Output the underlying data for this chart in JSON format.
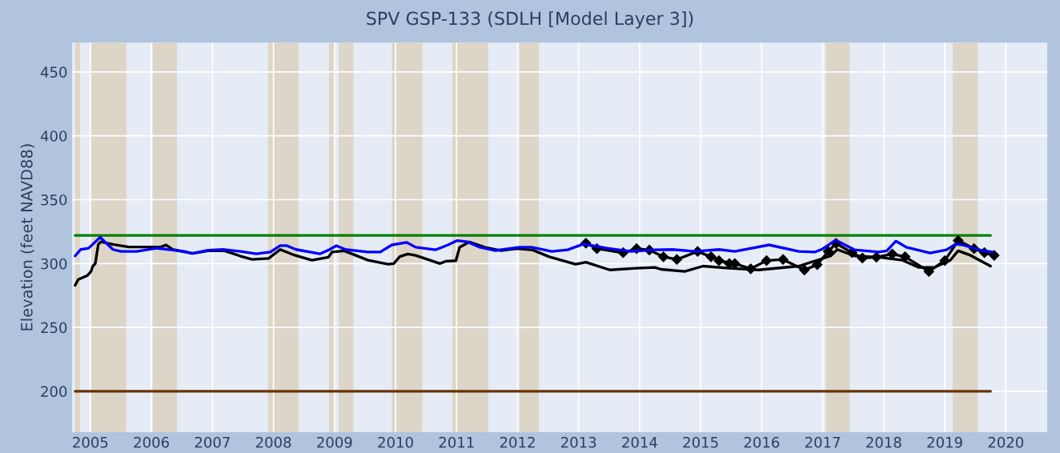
{
  "chart_data": {
    "type": "line",
    "title": "SPV GSP-133 (SDLH [Model Layer 3])",
    "ylabel": "Elevation (feet NAVD88)",
    "xlim": [
      2004.7,
      2020.68
    ],
    "xticks": [
      2005,
      2006,
      2007,
      2008,
      2009,
      2010,
      2011,
      2012,
      2013,
      2014,
      2015,
      2016,
      2017,
      2018,
      2019,
      2020
    ],
    "ylim": [
      168,
      473
    ],
    "yticks": [
      200,
      250,
      300,
      350,
      400,
      450
    ],
    "grid": true,
    "legend": false,
    "marker": "none",
    "line_style": "solid",
    "bands": [
      {
        "axis": "x",
        "from": 2004.75,
        "to": 2004.83,
        "color": "#ddd5c8"
      },
      {
        "axis": "x",
        "from": 2005.01,
        "to": 2005.59,
        "color": "#ddd5c8"
      },
      {
        "axis": "x",
        "from": 2006.02,
        "to": 2006.42,
        "color": "#ddd5c8"
      },
      {
        "axis": "x",
        "from": 2007.91,
        "to": 2008.41,
        "color": "#ddd5c8"
      },
      {
        "axis": "x",
        "from": 2008.91,
        "to": 2008.99,
        "color": "#ddd5c8"
      },
      {
        "axis": "x",
        "from": 2009.07,
        "to": 2009.31,
        "color": "#ddd5c8"
      },
      {
        "axis": "x",
        "from": 2009.94,
        "to": 2010.44,
        "color": "#ddd5c8"
      },
      {
        "axis": "x",
        "from": 2010.93,
        "to": 2011.52,
        "color": "#ddd5c8"
      },
      {
        "axis": "x",
        "from": 2012.03,
        "to": 2012.35,
        "color": "#ddd5c8"
      },
      {
        "axis": "x",
        "from": 2017.05,
        "to": 2017.44,
        "color": "#ddd5c8"
      },
      {
        "axis": "x",
        "from": 2019.13,
        "to": 2019.54,
        "color": "#ddd5c8"
      }
    ],
    "series": [
      {
        "color": "#008000",
        "x": [
          2004.75,
          2019.75
        ],
        "values": [
          322,
          322
        ]
      },
      {
        "color": "#663300",
        "x": [
          2004.75,
          2019.75
        ],
        "values": [
          200,
          200
        ]
      },
      {
        "color": "#000000",
        "x": [
          2004.75,
          2004.8,
          2004.95,
          2005.01,
          2005.04,
          2005.08,
          2005.13,
          2005.17,
          2005.37,
          2005.63,
          2005.89,
          2006.15,
          2006.24,
          2006.35,
          2006.67,
          2006.93,
          2007.2,
          2007.46,
          2007.65,
          2007.92,
          2008.11,
          2008.35,
          2008.63,
          2008.9,
          2008.96,
          2009.16,
          2009.55,
          2009.88,
          2009.97,
          2010.07,
          2010.2,
          2010.33,
          2010.73,
          2010.82,
          2010.99,
          2011.05,
          2011.21,
          2011.47,
          2011.73,
          2011.99,
          2012.25,
          2012.52,
          2012.95,
          2013.12,
          2013.51,
          2013.95,
          2014.25,
          2014.35,
          2014.74,
          2015.04,
          2015.47,
          2015.95,
          2016.61,
          2017.13,
          2017.24,
          2017.52,
          2017.92,
          2018.31,
          2018.57,
          2018.83,
          2019.09,
          2019.22,
          2019.42,
          2019.75
        ],
        "values": [
          283,
          287.5,
          290.6,
          293.8,
          298,
          300,
          315,
          317,
          315,
          313,
          313,
          313,
          314.5,
          311,
          308,
          310,
          310,
          305.8,
          303.2,
          304,
          311,
          306.5,
          302.6,
          305,
          309,
          310,
          302.6,
          299.5,
          300,
          305.4,
          307.5,
          306.4,
          300,
          301.8,
          302.2,
          312.7,
          316.9,
          312.7,
          310.2,
          311.7,
          310.6,
          305.3,
          299.5,
          301,
          295,
          296.3,
          297,
          295.5,
          293.8,
          298,
          296.3,
          295,
          298,
          306,
          311,
          306,
          305,
          302.6,
          297,
          297,
          302.6,
          310,
          306.5,
          298
        ]
      },
      {
        "color": "#000000",
        "marker": "diamond",
        "x": [
          2013.12,
          2013.3,
          2013.73,
          2013.95,
          2014.16,
          2014.39,
          2014.61,
          2014.95,
          2015.17,
          2015.47,
          2015.3,
          2015.56,
          2015.82,
          2016.08,
          2016.35,
          2016.7,
          2016.91,
          2017.09,
          2017.22,
          2017.48,
          2017.65,
          2017.88,
          2018.14,
          2018.35,
          2018.74,
          2019.0,
          2019.22,
          2019.48,
          2019.65,
          2019.81
        ],
        "values": [
          316,
          311.7,
          308.5,
          311.7,
          310.6,
          305.3,
          303.2,
          309.5,
          305.3,
          300,
          302.3,
          300,
          295.9,
          302.3,
          303.2,
          295,
          299.1,
          309.5,
          315.8,
          308.5,
          304.3,
          305,
          307.5,
          305.3,
          293.8,
          302.3,
          318,
          311.7,
          308.5,
          306.4
        ]
      },
      {
        "color": "#0000ff",
        "x": [
          2004.75,
          2004.84,
          2004.97,
          2005.16,
          2005.37,
          2005.5,
          2005.76,
          2006.08,
          2006.54,
          2006.67,
          2006.93,
          2007.17,
          2007.46,
          2007.72,
          2007.95,
          2008.11,
          2008.22,
          2008.37,
          2008.76,
          2008.92,
          2009.03,
          2009.18,
          2009.55,
          2009.75,
          2009.94,
          2010.18,
          2010.33,
          2010.66,
          2010.86,
          2011.01,
          2011.18,
          2011.38,
          2011.64,
          2012.03,
          2012.23,
          2012.56,
          2012.82,
          2013.08,
          2013.47,
          2013.86,
          2014.25,
          2014.54,
          2014.91,
          2015.3,
          2015.56,
          2016.12,
          2016.61,
          2016.87,
          2017.0,
          2017.21,
          2017.52,
          2017.92,
          2018.05,
          2018.2,
          2018.37,
          2018.76,
          2019.03,
          2019.18,
          2019.29,
          2019.61,
          2019.78
        ],
        "values": [
          306,
          311,
          312,
          320.5,
          311,
          309.5,
          309.5,
          312,
          309.5,
          308,
          310.5,
          311,
          309.5,
          307.6,
          309,
          314,
          314,
          311,
          307.6,
          311,
          314,
          311,
          309,
          309,
          314.6,
          316.6,
          312.8,
          310.8,
          314.6,
          318,
          317,
          312.8,
          310.2,
          312.8,
          312.8,
          309.5,
          310.8,
          315.3,
          312,
          309.5,
          310.8,
          311,
          309.5,
          311,
          309.5,
          314.6,
          309.5,
          309,
          311.5,
          318.3,
          310.8,
          309,
          310,
          317.6,
          312.8,
          308.3,
          310.8,
          315.3,
          314.6,
          310.2,
          309
        ]
      }
    ]
  }
}
